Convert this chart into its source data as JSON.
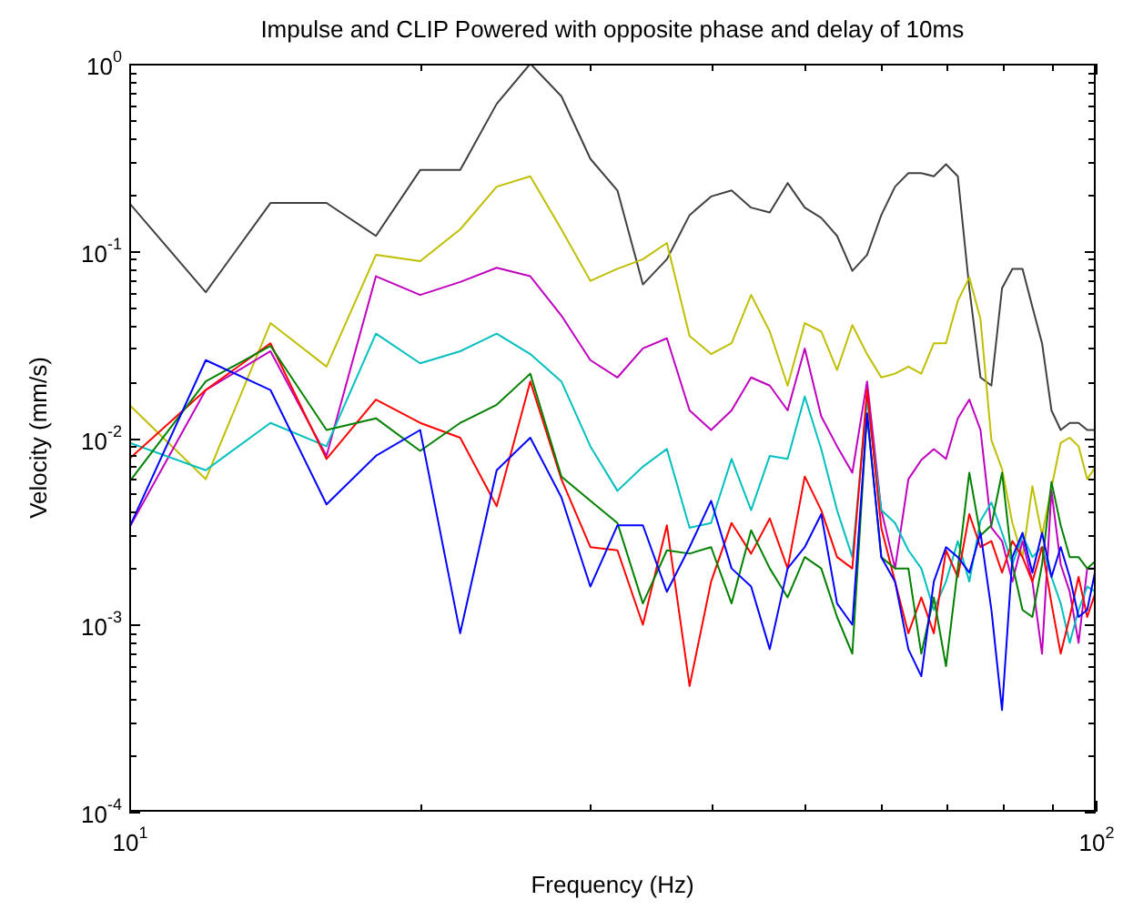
{
  "chart_data": {
    "type": "line",
    "title": "Impulse and CLIP Powered with opposite phase and delay of 10ms",
    "xlabel": "Frequency (Hz)",
    "ylabel": "Velocity (mm/s)",
    "log": "xy",
    "grid": false,
    "legend": false,
    "x": [
      10,
      12,
      14,
      16,
      18,
      20,
      22,
      24,
      26,
      28,
      30,
      32,
      34,
      36,
      38,
      40,
      42,
      44,
      46,
      48,
      50,
      52,
      54,
      56,
      58,
      60,
      62,
      64,
      66,
      68,
      70,
      72,
      74,
      76,
      78,
      80,
      82,
      84,
      86,
      88,
      90,
      92,
      94,
      96,
      98,
      100
    ],
    "xlim": [
      10,
      100
    ],
    "ylim": [
      0.0001,
      1
    ],
    "xticks": [
      {
        "value": 10,
        "label": "10$^{1}$"
      },
      {
        "value": 20,
        "label": null
      },
      {
        "value": 30,
        "label": null
      },
      {
        "value": 40,
        "label": null
      },
      {
        "value": 50,
        "label": null
      },
      {
        "value": 60,
        "label": null
      },
      {
        "value": 70,
        "label": null
      },
      {
        "value": 80,
        "label": null
      },
      {
        "value": 90,
        "label": null
      },
      {
        "value": 100,
        "label": "10$^{2}$"
      }
    ],
    "yticks": [
      {
        "value": 0.0001,
        "label": "10$^{-4}$"
      },
      {
        "value": 0.0002,
        "label": null
      },
      {
        "value": 0.0003,
        "label": null
      },
      {
        "value": 0.0004,
        "label": null
      },
      {
        "value": 0.0005,
        "label": null
      },
      {
        "value": 0.0006,
        "label": null
      },
      {
        "value": 0.0007,
        "label": null
      },
      {
        "value": 0.0008,
        "label": null
      },
      {
        "value": 0.0009,
        "label": null
      },
      {
        "value": 0.001,
        "label": "10$^{-3}$"
      },
      {
        "value": 0.002,
        "label": null
      },
      {
        "value": 0.003,
        "label": null
      },
      {
        "value": 0.004,
        "label": null
      },
      {
        "value": 0.005,
        "label": null
      },
      {
        "value": 0.006,
        "label": null
      },
      {
        "value": 0.007,
        "label": null
      },
      {
        "value": 0.008,
        "label": null
      },
      {
        "value": 0.009,
        "label": null
      },
      {
        "value": 0.01,
        "label": "10$^{-2}$"
      },
      {
        "value": 0.02,
        "label": null
      },
      {
        "value": 0.03,
        "label": null
      },
      {
        "value": 0.04,
        "label": null
      },
      {
        "value": 0.05,
        "label": null
      },
      {
        "value": 0.06,
        "label": null
      },
      {
        "value": 0.07,
        "label": null
      },
      {
        "value": 0.08,
        "label": null
      },
      {
        "value": 0.09,
        "label": null
      },
      {
        "value": 0.1,
        "label": "10$^{-1}$"
      },
      {
        "value": 0.2,
        "label": null
      },
      {
        "value": 0.3,
        "label": null
      },
      {
        "value": 0.4,
        "label": null
      },
      {
        "value": 0.5,
        "label": null
      },
      {
        "value": 0.6,
        "label": null
      },
      {
        "value": 0.7,
        "label": null
      },
      {
        "value": 0.8,
        "label": null
      },
      {
        "value": 0.9,
        "label": null
      },
      {
        "value": 1,
        "label": "10$^{0}$"
      }
    ],
    "series": [
      {
        "color": "#0000ff",
        "values": [
          0.0033,
          0.026,
          0.018,
          0.0044,
          0.008,
          0.011,
          0.0009,
          0.0067,
          0.01,
          0.0048,
          0.0016,
          0.0034,
          0.0034,
          0.0015,
          0.0026,
          0.0046,
          0.002,
          0.0016,
          0.00074,
          0.002,
          0.0026,
          0.0039,
          0.0013,
          0.001,
          0.0135,
          0.0023,
          0.0017,
          0.00074,
          0.00053,
          0.0017,
          0.0026,
          0.0023,
          0.0019,
          0.0031,
          0.0012,
          0.00035,
          0.0023,
          0.0031,
          0.0019,
          0.0031,
          0.0018,
          0.0026,
          0.0018,
          0.0011,
          0.0012,
          0.002
        ]
      },
      {
        "color": "#008000",
        "values": [
          0.0058,
          0.02,
          0.031,
          0.011,
          0.0127,
          0.0085,
          0.012,
          0.015,
          0.022,
          0.0062,
          0.0046,
          0.0035,
          0.0013,
          0.0025,
          0.0024,
          0.0026,
          0.0013,
          0.0032,
          0.002,
          0.0014,
          0.0023,
          0.002,
          0.0011,
          0.0007,
          0.0135,
          0.0023,
          0.002,
          0.002,
          0.0007,
          0.0014,
          0.0006,
          0.002,
          0.0065,
          0.003,
          0.0034,
          0.0065,
          0.0021,
          0.0012,
          0.0011,
          0.0021,
          0.0058,
          0.0034,
          0.0023,
          0.0023,
          0.002,
          0.0022
        ]
      },
      {
        "color": "#ff0000",
        "values": [
          0.0077,
          0.018,
          0.032,
          0.0077,
          0.016,
          0.012,
          0.01,
          0.0043,
          0.02,
          0.006,
          0.0026,
          0.0025,
          0.001,
          0.0034,
          0.00047,
          0.0017,
          0.0035,
          0.0024,
          0.0037,
          0.002,
          0.0062,
          0.0041,
          0.0023,
          0.002,
          0.018,
          0.0033,
          0.0017,
          0.0009,
          0.0014,
          0.0009,
          0.0025,
          0.0018,
          0.0039,
          0.0026,
          0.0028,
          0.0019,
          0.0028,
          0.0023,
          0.0017,
          0.0026,
          0.0013,
          0.0007,
          0.0011,
          0.0018,
          0.0011,
          0.0015
        ]
      },
      {
        "color": "#00bfbf",
        "values": [
          0.0094,
          0.0067,
          0.012,
          0.009,
          0.036,
          0.025,
          0.029,
          0.036,
          0.028,
          0.02,
          0.009,
          0.0052,
          0.007,
          0.0087,
          0.0033,
          0.0035,
          0.0077,
          0.0041,
          0.008,
          0.0077,
          0.0166,
          0.0087,
          0.0041,
          0.0023,
          0.016,
          0.0041,
          0.0035,
          0.0025,
          0.002,
          0.0012,
          0.0017,
          0.0028,
          0.0017,
          0.0036,
          0.0045,
          0.0031,
          0.0021,
          0.003,
          0.0023,
          0.0026,
          0.0018,
          0.0013,
          0.0008,
          0.0012,
          0.0016,
          0.0015
        ]
      },
      {
        "color": "#bf00bf",
        "values": [
          0.0033,
          0.018,
          0.029,
          0.008,
          0.073,
          0.058,
          0.068,
          0.081,
          0.073,
          0.045,
          0.026,
          0.021,
          0.03,
          0.034,
          0.014,
          0.011,
          0.014,
          0.021,
          0.019,
          0.014,
          0.03,
          0.013,
          0.009,
          0.0065,
          0.02,
          0.0041,
          0.002,
          0.006,
          0.0076,
          0.0087,
          0.0077,
          0.0127,
          0.016,
          0.011,
          0.0033,
          0.0028,
          0.0017,
          0.0028,
          0.0017,
          0.0007,
          0.0052,
          0.0021,
          0.0015,
          0.0008,
          0.002,
          0.002
        ]
      },
      {
        "color": "#bfbf00",
        "values": [
          0.015,
          0.006,
          0.041,
          0.024,
          0.095,
          0.088,
          0.13,
          0.22,
          0.25,
          0.13,
          0.069,
          0.08,
          0.09,
          0.11,
          0.035,
          0.028,
          0.032,
          0.058,
          0.037,
          0.019,
          0.041,
          0.037,
          0.023,
          0.04,
          0.028,
          0.021,
          0.022,
          0.024,
          0.022,
          0.032,
          0.032,
          0.054,
          0.072,
          0.043,
          0.0097,
          0.0068,
          0.0035,
          0.0023,
          0.0055,
          0.003,
          0.0054,
          0.0094,
          0.01,
          0.009,
          0.006,
          0.007
        ]
      },
      {
        "color": "#404040",
        "values": [
          0.18,
          0.06,
          0.18,
          0.18,
          0.12,
          0.27,
          0.27,
          0.61,
          1,
          0.67,
          0.31,
          0.21,
          0.066,
          0.09,
          0.155,
          0.195,
          0.21,
          0.17,
          0.16,
          0.23,
          0.17,
          0.15,
          0.12,
          0.078,
          0.095,
          0.155,
          0.22,
          0.26,
          0.26,
          0.25,
          0.29,
          0.25,
          0.063,
          0.021,
          0.019,
          0.063,
          0.08,
          0.08,
          0.05,
          0.032,
          0.014,
          0.011,
          0.012,
          0.012,
          0.011,
          0.011
        ]
      }
    ]
  }
}
